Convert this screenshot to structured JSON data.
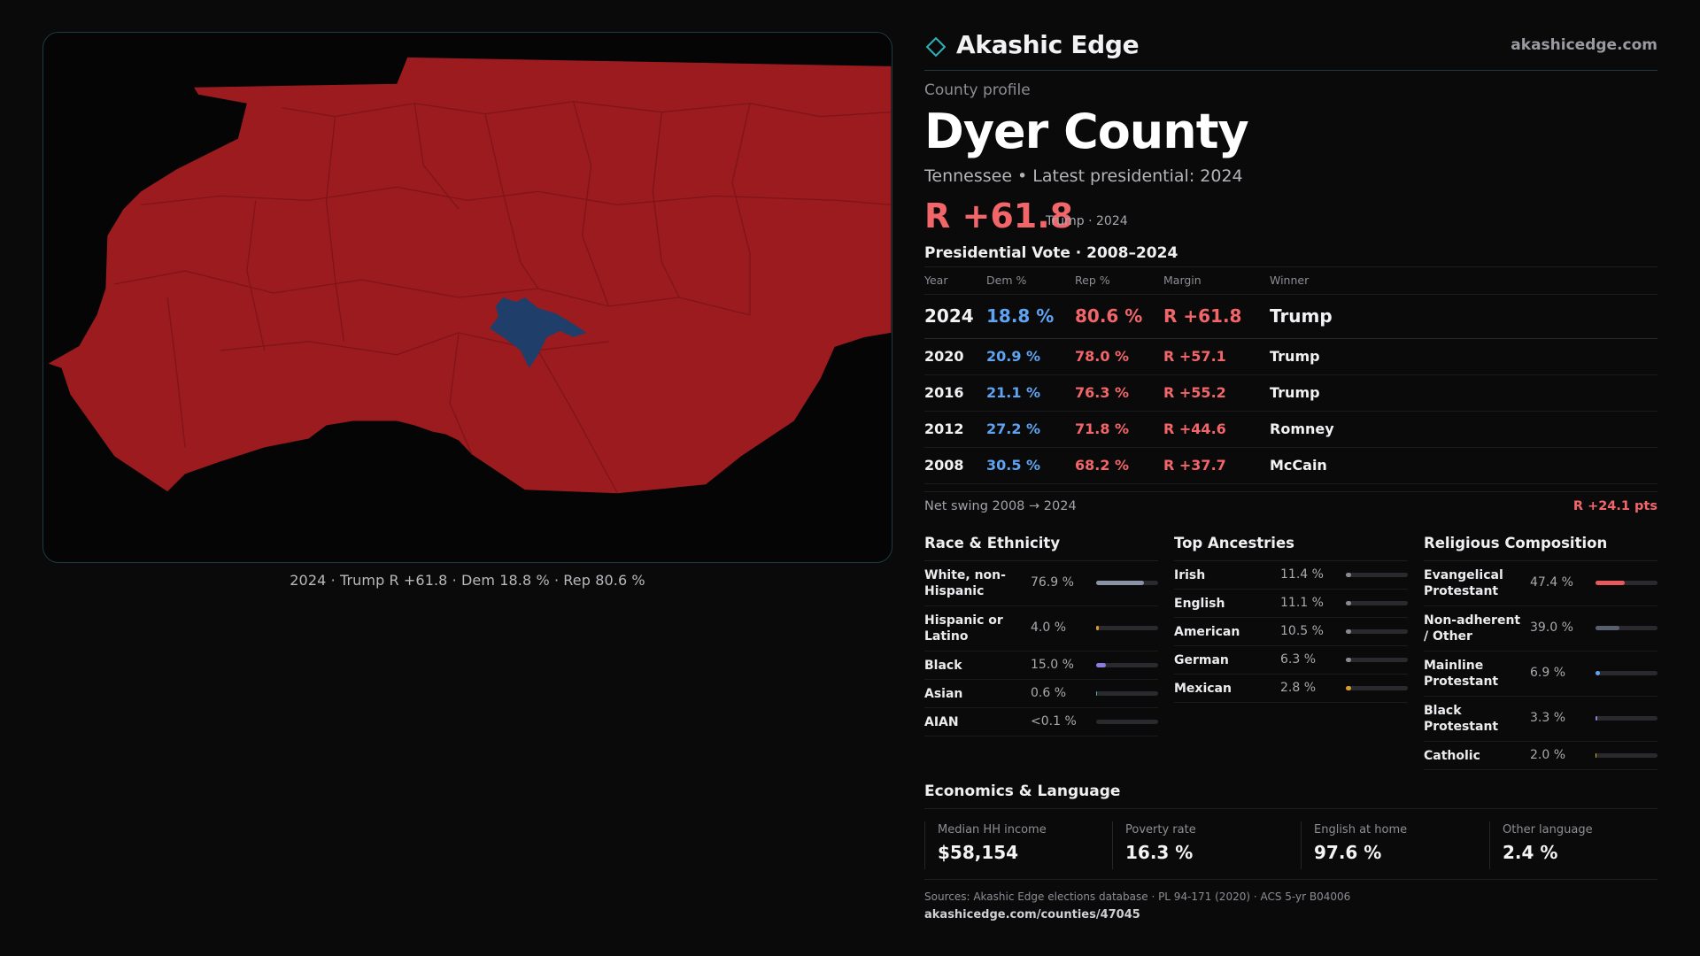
{
  "map": {
    "caption": "2024 · Trump R +61.8 · Dem 18.8 % · Rep 80.6 %",
    "rep_color": "#9b1b1f",
    "dem_color": "#1f3f6a"
  },
  "header": {
    "brand": "Akashic Edge",
    "brand_icon": "diamond-icon",
    "site": "akashicedge.com"
  },
  "profile": {
    "label": "County profile",
    "name": "Dyer County",
    "subtitle": "Tennessee • Latest presidential: 2024",
    "headline_margin": "R +61.8",
    "headline_note": "Trump · 2024"
  },
  "votes": {
    "title": "Presidential Vote · 2008–2024",
    "columns": [
      "Year",
      "Dem %",
      "Rep %",
      "Margin",
      "Winner"
    ],
    "rows": [
      {
        "year": "2024",
        "dem": "18.8 %",
        "rep": "80.6 %",
        "margin": "R +61.8",
        "winner": "Trump"
      },
      {
        "year": "2020",
        "dem": "20.9 %",
        "rep": "78.0 %",
        "margin": "R +57.1",
        "winner": "Trump"
      },
      {
        "year": "2016",
        "dem": "21.1 %",
        "rep": "76.3 %",
        "margin": "R +55.2",
        "winner": "Trump"
      },
      {
        "year": "2012",
        "dem": "27.2 %",
        "rep": "71.8 %",
        "margin": "R +44.6",
        "winner": "Romney"
      },
      {
        "year": "2008",
        "dem": "30.5 %",
        "rep": "68.2 %",
        "margin": "R +37.7",
        "winner": "McCain"
      }
    ],
    "swing_label": "Net swing 2008 → 2024",
    "swing_value": "R +24.1 pts"
  },
  "race": {
    "title": "Race & Ethnicity",
    "rows": [
      {
        "label": "White, non-Hispanic",
        "value": "76.9 %",
        "share": 0.769,
        "color": "#8a93a6"
      },
      {
        "label": "Hispanic or Latino",
        "value": "4.0 %",
        "share": 0.04,
        "color": "#d99b2b"
      },
      {
        "label": "Black",
        "value": "15.0 %",
        "share": 0.15,
        "color": "#8e7be0"
      },
      {
        "label": "Asian",
        "value": "0.6 %",
        "share": 0.006,
        "color": "#3fb6a8"
      },
      {
        "label": "AIAN",
        "value": "<0.1 %",
        "share": 0.0,
        "color": "#8a93a6"
      }
    ]
  },
  "ancestry": {
    "title": "Top Ancestries",
    "rows": [
      {
        "label": "Irish",
        "value": "11.4 %",
        "share": 0.114,
        "color": "#8a8a90"
      },
      {
        "label": "English",
        "value": "11.1 %",
        "share": 0.111,
        "color": "#8a8a90"
      },
      {
        "label": "American",
        "value": "10.5 %",
        "share": 0.105,
        "color": "#8a8a90"
      },
      {
        "label": "German",
        "value": "6.3 %",
        "share": 0.063,
        "color": "#8a8a90"
      },
      {
        "label": "Mexican",
        "value": "2.8 %",
        "share": 0.028,
        "color": "#d99b2b"
      }
    ]
  },
  "religion": {
    "title": "Religious Composition",
    "rows": [
      {
        "label": "Evangelical Protestant",
        "value": "47.4 %",
        "share": 0.474,
        "color": "#e8595e"
      },
      {
        "label": "Non-adherent / Other",
        "value": "39.0 %",
        "share": 0.39,
        "color": "#5a5f70"
      },
      {
        "label": "Mainline Protestant",
        "value": "6.9 %",
        "share": 0.069,
        "color": "#5ea4f2"
      },
      {
        "label": "Black Protestant",
        "value": "3.3 %",
        "share": 0.033,
        "color": "#8e7be0"
      },
      {
        "label": "Catholic",
        "value": "2.0 %",
        "share": 0.02,
        "color": "#d9b02b"
      }
    ]
  },
  "economics": {
    "title": "Economics & Language",
    "stats": [
      {
        "label": "Median HH income",
        "value": "$58,154"
      },
      {
        "label": "Poverty rate",
        "value": "16.3 %"
      },
      {
        "label": "English at home",
        "value": "97.6 %"
      },
      {
        "label": "Other language",
        "value": "2.4 %"
      }
    ]
  },
  "footer": {
    "sources": "Sources: Akashic Edge elections database · PL 94-171 (2020) · ACS 5-yr B04006",
    "permalink": "akashicedge.com/counties/47045"
  }
}
